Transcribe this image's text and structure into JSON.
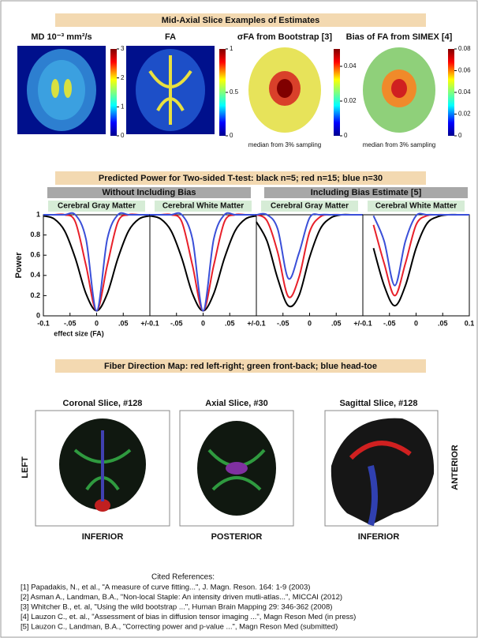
{
  "section1": {
    "title": "Mid-Axial Slice Examples of Estimates",
    "panels": [
      {
        "title": "MD 10⁻³ mm²/s",
        "colorbar": {
          "lim": [
            0,
            3
          ],
          "ticks": [
            0,
            1,
            2,
            3
          ]
        }
      },
      {
        "title": "FA",
        "colorbar": {
          "lim": [
            0,
            1
          ],
          "ticks": [
            0,
            0.5,
            1
          ]
        }
      },
      {
        "title": "σFA from Bootstrap [3]",
        "note": "median from 3% sampling",
        "colorbar": {
          "lim": [
            0,
            0.05
          ],
          "ticks": [
            0,
            0.02,
            0.04
          ]
        }
      },
      {
        "title": "Bias of FA from SIMEX [4]",
        "note": "median from 3% sampling",
        "colorbar": {
          "lim": [
            0,
            0.08
          ],
          "ticks": [
            0,
            0.02,
            0.04,
            0.06,
            0.08
          ]
        }
      }
    ]
  },
  "power_section": {
    "title": "Predicted Power for Two-sided T-test:  black n=5;  red n=15;  blue n=30",
    "groups": [
      "Without Including Bias",
      "Including Bias Estimate [5]"
    ],
    "ylabel": "Power",
    "xlabel": "effect size (FA)"
  },
  "chart_data": [
    {
      "type": "line",
      "title": "Cerebral Gray Matter",
      "x": [
        -0.1,
        -0.08,
        -0.06,
        -0.04,
        -0.02,
        0,
        0.02,
        0.04,
        0.06,
        0.08,
        0.1
      ],
      "series": [
        {
          "color": "#000000",
          "values": [
            0.99,
            0.96,
            0.84,
            0.57,
            0.22,
            0.05,
            0.22,
            0.57,
            0.84,
            0.96,
            0.99
          ]
        },
        {
          "color": "#e8202a",
          "values": [
            1,
            1,
            1,
            0.93,
            0.5,
            0.05,
            0.5,
            0.93,
            1,
            1,
            1
          ]
        },
        {
          "color": "#3a4fd8",
          "values": [
            1,
            1,
            1,
            1,
            0.76,
            0.05,
            0.76,
            1,
            1,
            1,
            1
          ]
        }
      ],
      "xlim": [
        -0.1,
        0.1
      ],
      "xticks": [
        {
          "value": -0.1,
          "label": "-0.1"
        },
        {
          "value": -0.05,
          "label": "-.05"
        },
        0,
        {
          "value": 0.05,
          "label": ".05"
        },
        {
          "value": 0.1,
          "label": "+/-0.1"
        }
      ],
      "ylim": [
        0,
        1
      ],
      "yticks": [
        0,
        0.2,
        0.4,
        0.6,
        0.8,
        1
      ]
    },
    {
      "type": "line",
      "title": "Cerebral White Matter",
      "x": [
        -0.1,
        -0.08,
        -0.06,
        -0.04,
        -0.02,
        0,
        0.02,
        0.04,
        0.06,
        0.08,
        0.1
      ],
      "series": [
        {
          "color": "#000000",
          "values": [
            0.99,
            0.96,
            0.84,
            0.57,
            0.22,
            0.05,
            0.22,
            0.57,
            0.84,
            0.96,
            0.99
          ]
        },
        {
          "color": "#e8202a",
          "values": [
            1,
            1,
            1,
            0.93,
            0.5,
            0.05,
            0.5,
            0.93,
            1,
            1,
            1
          ]
        },
        {
          "color": "#3a4fd8",
          "values": [
            1,
            1,
            1,
            1,
            0.76,
            0.05,
            0.76,
            1,
            1,
            1,
            1
          ]
        }
      ],
      "xlim": [
        -0.1,
        0.1
      ],
      "xticks": [
        {
          "value": -0.05,
          "label": "-.05"
        },
        0,
        {
          "value": 0.05,
          "label": ".05"
        },
        {
          "value": 0.1,
          "label": "+/-0.1"
        }
      ],
      "ylim": [
        0,
        1
      ]
    },
    {
      "type": "line",
      "title": "Cerebral Gray Matter",
      "x": [
        -0.1,
        -0.08,
        -0.06,
        -0.04,
        -0.02,
        0,
        0.02,
        0.04,
        0.06,
        0.08,
        0.1
      ],
      "series": [
        {
          "color": "#000000",
          "values": [
            0.93,
            0.74,
            0.37,
            0.1,
            0.2,
            0.58,
            0.86,
            0.97,
            1,
            1,
            1
          ]
        },
        {
          "color": "#e8202a",
          "values": [
            1,
            0.94,
            0.63,
            0.19,
            0.38,
            0.83,
            0.98,
            1,
            1,
            1,
            1
          ]
        },
        {
          "color": "#3a4fd8",
          "values": [
            1,
            1,
            0.86,
            0.37,
            0.62,
            0.97,
            1,
            1,
            1,
            1,
            1
          ]
        }
      ],
      "xlim": [
        -0.1,
        0.1
      ],
      "xticks": [
        {
          "value": -0.05,
          "label": "-.05"
        },
        0,
        {
          "value": 0.05,
          "label": ".05"
        },
        {
          "value": 0.1,
          "label": "+/-0.1"
        }
      ],
      "ylim": [
        0,
        1
      ]
    },
    {
      "type": "line",
      "title": "Cerebral White Matter",
      "x": [
        -0.1,
        -0.08,
        -0.06,
        -0.04,
        -0.02,
        0,
        0.02,
        0.04,
        0.06,
        0.08,
        0.1
      ],
      "series": [
        {
          "color": "#000000",
          "values": [
            null,
            0.67,
            0.3,
            0.1,
            0.3,
            0.67,
            0.91,
            0.98,
            1,
            1,
            1
          ]
        },
        {
          "color": "#e8202a",
          "values": [
            null,
            0.9,
            0.52,
            0.2,
            0.52,
            0.9,
            0.99,
            1,
            1,
            1,
            1
          ]
        },
        {
          "color": "#3a4fd8",
          "values": [
            null,
            0.99,
            0.74,
            0.3,
            0.74,
            0.99,
            1,
            1,
            1,
            1,
            1
          ]
        }
      ],
      "xlim": [
        -0.1,
        0.1
      ],
      "xticks": [
        {
          "value": -0.05,
          "label": "-.05"
        },
        0,
        {
          "value": 0.05,
          "label": ".05"
        },
        0.1
      ],
      "ylim": [
        0,
        1
      ]
    }
  ],
  "fiber_section": {
    "title": "Fiber Direction Map: red left-right;  green front-back;  blue head-toe",
    "slices": [
      {
        "title": "Coronal Slice, #128",
        "bottom": "INFERIOR"
      },
      {
        "title": "Axial Slice, #30",
        "bottom": "POSTERIOR"
      },
      {
        "title": "Sagittal Slice, #128",
        "bottom": "INFERIOR"
      }
    ],
    "left": "LEFT",
    "right": "ANTERIOR"
  },
  "references": {
    "title": "Cited References:",
    "items": [
      "[1] Papadakis, N., et al., \"A measure of curve fitting...\", J. Magn. Reson. 164: 1-9 (2003)",
      "[2] Asman A., Landman, B.A., \"Non-local Staple: An intensity driven mutli-atlas...\", MICCAI (2012)",
      "[3] Whitcher B., et. al, \"Using the wild bootstrap ...\", Human Brain Mapping 29: 346-362 (2008)",
      "[4] Lauzon C., et. al., \"Assessment of bias in diffusion tensor imaging ...\", Magn Reson Med (in press)",
      "[5] Lauzon C., Landman, B.A., \"Correcting power and p-value ...\", Magn Reson Med (submitted)"
    ]
  }
}
